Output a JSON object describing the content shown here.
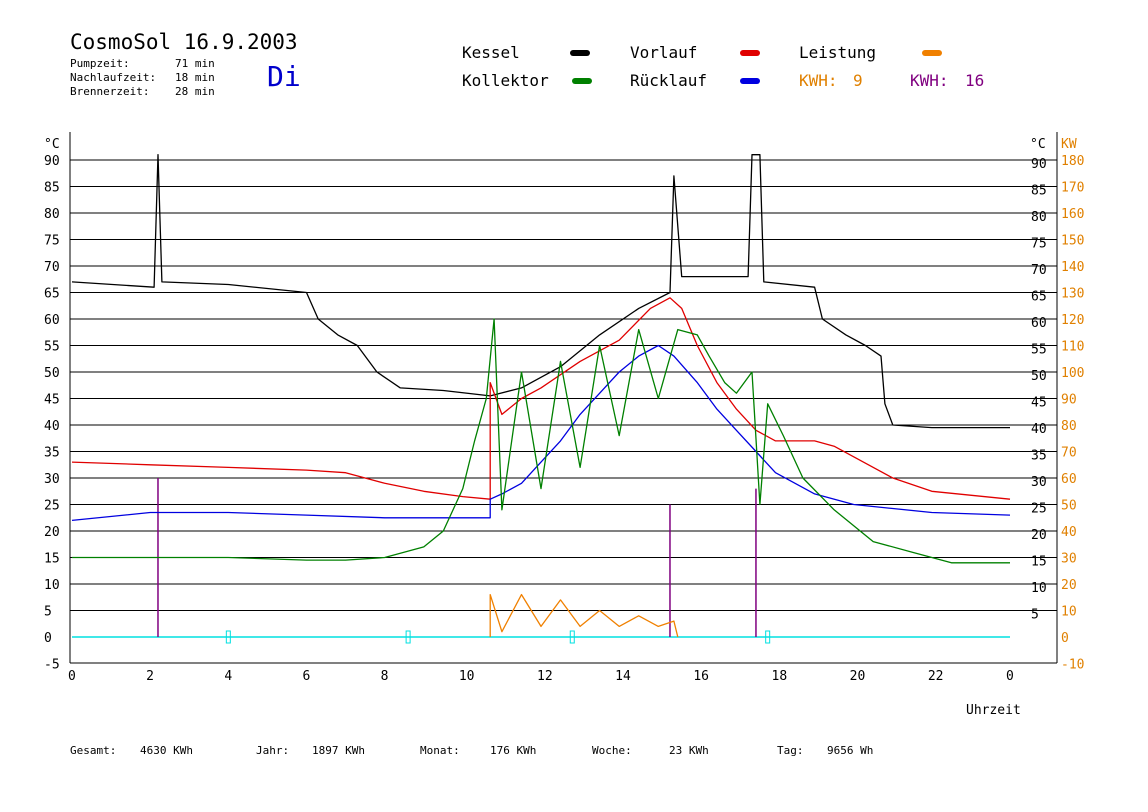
{
  "header": {
    "title": "CosmoSol 16.9.2003",
    "day": "Di",
    "stats": [
      {
        "label": "Pumpzeit:",
        "value": "71 min"
      },
      {
        "label": "Nachlaufzeit:",
        "value": "18 min"
      },
      {
        "label": "Brennerzeit:",
        "value": "28 min"
      }
    ]
  },
  "legend": {
    "kessel": "Kessel",
    "vorlauf": "Vorlauf",
    "leistung": "Leistung",
    "kollektor": "Kollektor",
    "ruecklauf": "Rücklauf",
    "kwh_label_1": "KWH:",
    "kwh_value_1": "9",
    "kwh_label_2": "KWH:",
    "kwh_value_2": "16"
  },
  "colors": {
    "kessel": "#000000",
    "vorlauf": "#e00000",
    "ruecklauf": "#0000e0",
    "kollektor": "#008000",
    "leistung": "#f08000",
    "purple": "#800080",
    "cyan": "#00e0e0"
  },
  "footer": [
    {
      "label": "Gesamt:",
      "value": "4630 KWh"
    },
    {
      "label": "Jahr:",
      "value": "1897 KWh"
    },
    {
      "label": "Monat:",
      "value": "176 KWh"
    },
    {
      "label": "Woche:",
      "value": "23 KWh"
    },
    {
      "label": "Tag:",
      "value": "9656 Wh"
    }
  ],
  "chart_data": {
    "type": "line",
    "xlabel": "Uhrzeit",
    "ylabel_left": "°C",
    "ylabel_right": "KW",
    "xlim": [
      0,
      24
    ],
    "ylim": [
      -5,
      95
    ],
    "ylim_right": [
      -10,
      190
    ],
    "x_ticks": [
      "0",
      "2",
      "4",
      "6",
      "8",
      "10",
      "12",
      "14",
      "16",
      "18",
      "20",
      "22",
      "0"
    ],
    "y_ticks_left": [
      "-5",
      "0",
      "5",
      "10",
      "15",
      "20",
      "25",
      "30",
      "35",
      "40",
      "45",
      "50",
      "55",
      "60",
      "65",
      "70",
      "75",
      "80",
      "85",
      "90"
    ],
    "y_ticks_right_celsius": [
      "5",
      "10",
      "15",
      "20",
      "25",
      "30",
      "35",
      "40",
      "45",
      "50",
      "55",
      "60",
      "65",
      "70",
      "75",
      "80",
      "85",
      "90"
    ],
    "y_ticks_right_kw": [
      "-10",
      "0",
      "10",
      "20",
      "30",
      "40",
      "50",
      "60",
      "70",
      "80",
      "90",
      "100",
      "110",
      "120",
      "130",
      "140",
      "150",
      "160",
      "170",
      "180"
    ],
    "grid": true,
    "series": [
      {
        "name": "Kessel",
        "color": "#000000",
        "points": [
          [
            0,
            67
          ],
          [
            2.1,
            66
          ],
          [
            2.2,
            91
          ],
          [
            2.3,
            67
          ],
          [
            4,
            66.5
          ],
          [
            6,
            65
          ],
          [
            6.3,
            60
          ],
          [
            6.8,
            57
          ],
          [
            7.3,
            55
          ],
          [
            7.8,
            50
          ],
          [
            8.4,
            47
          ],
          [
            9.5,
            46.5
          ],
          [
            10.7,
            45.5
          ],
          [
            11.5,
            47
          ],
          [
            12.5,
            51
          ],
          [
            13.5,
            57
          ],
          [
            14.5,
            62
          ],
          [
            15.3,
            65
          ],
          [
            15.4,
            87
          ],
          [
            15.6,
            68
          ],
          [
            17.3,
            68
          ],
          [
            17.4,
            91
          ],
          [
            17.6,
            91
          ],
          [
            17.7,
            67
          ],
          [
            19.0,
            66
          ],
          [
            19.2,
            60
          ],
          [
            19.8,
            57
          ],
          [
            20.3,
            55
          ],
          [
            20.7,
            53
          ],
          [
            20.8,
            44
          ],
          [
            21.0,
            40
          ],
          [
            22,
            39.5
          ],
          [
            24,
            39.5
          ]
        ]
      },
      {
        "name": "Vorlauf",
        "color": "#e00000",
        "points": [
          [
            0,
            33
          ],
          [
            2,
            32.5
          ],
          [
            4,
            32
          ],
          [
            6,
            31.5
          ],
          [
            7,
            31
          ],
          [
            8,
            29
          ],
          [
            9,
            27.5
          ],
          [
            10,
            26.5
          ],
          [
            10.7,
            26
          ],
          [
            10.7,
            48
          ],
          [
            11,
            42
          ],
          [
            11.5,
            45
          ],
          [
            12,
            47
          ],
          [
            13,
            52
          ],
          [
            14,
            56
          ],
          [
            14.8,
            62
          ],
          [
            15.3,
            64
          ],
          [
            15.6,
            62
          ],
          [
            16,
            55
          ],
          [
            16.5,
            48
          ],
          [
            17,
            43
          ],
          [
            17.5,
            39
          ],
          [
            18,
            37
          ],
          [
            19,
            37
          ],
          [
            19.5,
            36
          ],
          [
            20,
            34
          ],
          [
            21,
            30
          ],
          [
            22,
            27.5
          ],
          [
            24,
            26
          ]
        ]
      },
      {
        "name": "Rücklauf",
        "color": "#0000e0",
        "points": [
          [
            0,
            22
          ],
          [
            2,
            23.5
          ],
          [
            4,
            23.5
          ],
          [
            6,
            23
          ],
          [
            8,
            22.5
          ],
          [
            10,
            22.5
          ],
          [
            10.7,
            22.5
          ],
          [
            10.7,
            26
          ],
          [
            11,
            27
          ],
          [
            11.5,
            29
          ],
          [
            12,
            33
          ],
          [
            12.5,
            37
          ],
          [
            13,
            42
          ],
          [
            14,
            50
          ],
          [
            14.5,
            53
          ],
          [
            15,
            55
          ],
          [
            15.4,
            53
          ],
          [
            16,
            48
          ],
          [
            16.5,
            43
          ],
          [
            17,
            39
          ],
          [
            17.5,
            35
          ],
          [
            18,
            31
          ],
          [
            19,
            27
          ],
          [
            20,
            25
          ],
          [
            22,
            23.5
          ],
          [
            24,
            23
          ]
        ]
      },
      {
        "name": "Kollektor",
        "color": "#008000",
        "points": [
          [
            0,
            15
          ],
          [
            2,
            15
          ],
          [
            4,
            15
          ],
          [
            6,
            14.5
          ],
          [
            7,
            14.5
          ],
          [
            8,
            15
          ],
          [
            9,
            17
          ],
          [
            9.5,
            20
          ],
          [
            10,
            28
          ],
          [
            10.3,
            37
          ],
          [
            10.6,
            45
          ],
          [
            10.8,
            60
          ],
          [
            11,
            24
          ],
          [
            11.5,
            50
          ],
          [
            12,
            28
          ],
          [
            12.5,
            52
          ],
          [
            13,
            32
          ],
          [
            13.5,
            55
          ],
          [
            14,
            38
          ],
          [
            14.5,
            58
          ],
          [
            15,
            45
          ],
          [
            15.5,
            58
          ],
          [
            16,
            57
          ],
          [
            16.3,
            53
          ],
          [
            16.7,
            48
          ],
          [
            17,
            46
          ],
          [
            17.4,
            50
          ],
          [
            17.6,
            25
          ],
          [
            17.8,
            44
          ],
          [
            18.2,
            38
          ],
          [
            18.7,
            30
          ],
          [
            19.5,
            24
          ],
          [
            20.5,
            18
          ],
          [
            21.5,
            16
          ],
          [
            22.5,
            14
          ],
          [
            24,
            14
          ]
        ]
      },
      {
        "name": "Leistung",
        "color": "#f08000",
        "points": [
          [
            10.7,
            0
          ],
          [
            10.7,
            8
          ],
          [
            11,
            1
          ],
          [
            11.5,
            8
          ],
          [
            12,
            2
          ],
          [
            12.5,
            7
          ],
          [
            13,
            2
          ],
          [
            13.5,
            5
          ],
          [
            14,
            2
          ],
          [
            14.5,
            4
          ],
          [
            15,
            2
          ],
          [
            15.4,
            3
          ],
          [
            15.5,
            0
          ]
        ]
      }
    ]
  }
}
